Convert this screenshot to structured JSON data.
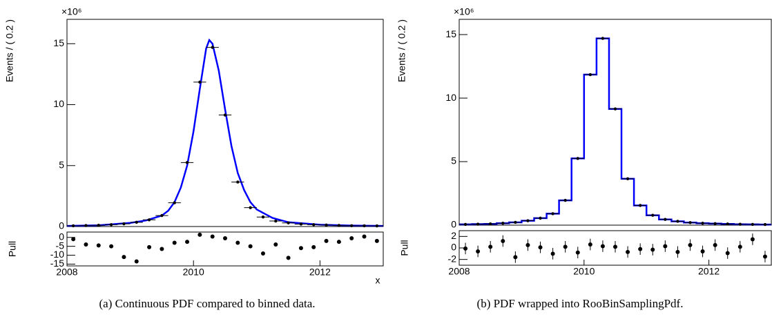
{
  "chart_data": [
    {
      "type": "points_curve",
      "caption": "(a) Continuous PDF compared to binned data.",
      "ylabel": "Events / ( 0.2 )",
      "multiplier_label": "×10⁶",
      "xlabel": "x",
      "x": [
        2008.1,
        2008.3,
        2008.5,
        2008.7,
        2008.9,
        2009.1,
        2009.3,
        2009.5,
        2009.7,
        2009.9,
        2010.1,
        2010.3,
        2010.5,
        2010.7,
        2010.9,
        2011.1,
        2011.3,
        2011.5,
        2011.7,
        2011.9,
        2012.1,
        2012.3,
        2012.5,
        2012.7,
        2012.9
      ],
      "values": [
        0.06,
        0.08,
        0.1,
        0.15,
        0.22,
        0.35,
        0.55,
        0.9,
        1.95,
        5.25,
        11.85,
        14.7,
        9.15,
        3.65,
        1.55,
        0.78,
        0.45,
        0.3,
        0.2,
        0.15,
        0.12,
        0.09,
        0.07,
        0.06,
        0.05
      ],
      "xerr": 0.1,
      "curve": {
        "color": "#0000ff",
        "x": [
          2008,
          2008.5,
          2009,
          2009.25,
          2009.5,
          2009.6,
          2009.7,
          2009.8,
          2009.9,
          2010,
          2010.1,
          2010.2,
          2010.25,
          2010.3,
          2010.4,
          2010.5,
          2010.6,
          2010.7,
          2010.8,
          2010.9,
          2011,
          2011.25,
          2011.5,
          2012,
          2012.5,
          2013
        ],
        "values": [
          0.05,
          0.1,
          0.3,
          0.5,
          0.9,
          1.3,
          2.0,
          3.2,
          5.0,
          7.8,
          11.3,
          14.6,
          15.3,
          15.0,
          12.8,
          9.6,
          6.6,
          4.4,
          3.0,
          2.0,
          1.4,
          0.7,
          0.35,
          0.15,
          0.08,
          0.05
        ]
      },
      "xlim": [
        2008,
        2013
      ],
      "ylim": [
        0,
        17
      ],
      "yticks": [
        0,
        5,
        10,
        15
      ]
    },
    {
      "type": "pull",
      "ylabel": "Pull",
      "x": [
        2008.1,
        2008.3,
        2008.5,
        2008.7,
        2008.9,
        2009.1,
        2009.3,
        2009.5,
        2009.7,
        2009.9,
        2010.1,
        2010.3,
        2010.5,
        2010.7,
        2010.9,
        2011.1,
        2011.3,
        2011.5,
        2011.7,
        2011.9,
        2012.1,
        2012.3,
        2012.5,
        2012.7,
        2012.9
      ],
      "values": [
        -1,
        -4,
        -4.5,
        -5,
        -11,
        -13.5,
        -5.5,
        -6.5,
        -3,
        -2.5,
        1.5,
        0.5,
        -0.5,
        -3,
        -5,
        -9,
        -4,
        -11.5,
        -6,
        -5.5,
        -2,
        -2.5,
        -0.5,
        0.5,
        -2
      ],
      "xlim": [
        2008,
        2013
      ],
      "ylim": [
        -16,
        3
      ],
      "yticks": [
        -15,
        -10,
        -5,
        0
      ],
      "xticks": [
        2008,
        2010,
        2012
      ]
    },
    {
      "type": "step_points",
      "caption": "(b) PDF wrapped into RooBinSamplingPdf.",
      "ylabel": "Events / ( 0.2 )",
      "multiplier_label": "×10⁶",
      "color": "#0000ff",
      "x": [
        2008.1,
        2008.3,
        2008.5,
        2008.7,
        2008.9,
        2009.1,
        2009.3,
        2009.5,
        2009.7,
        2009.9,
        2010.1,
        2010.3,
        2010.5,
        2010.7,
        2010.9,
        2011.1,
        2011.3,
        2011.5,
        2011.7,
        2011.9,
        2012.1,
        2012.3,
        2012.5,
        2012.7,
        2012.9
      ],
      "values": [
        0.06,
        0.08,
        0.1,
        0.15,
        0.22,
        0.35,
        0.55,
        0.9,
        1.95,
        5.25,
        11.85,
        14.7,
        9.15,
        3.65,
        1.55,
        0.78,
        0.45,
        0.3,
        0.2,
        0.15,
        0.12,
        0.09,
        0.07,
        0.06,
        0.05
      ],
      "xerr": 0.1,
      "xlim": [
        2008,
        2013
      ],
      "ylim": [
        0,
        16.2
      ],
      "yticks": [
        0,
        5,
        10,
        15
      ]
    },
    {
      "type": "pull",
      "ylabel": "Pull",
      "x": [
        2008.1,
        2008.3,
        2008.5,
        2008.7,
        2008.9,
        2009.1,
        2009.3,
        2009.5,
        2009.7,
        2009.9,
        2010.1,
        2010.3,
        2010.5,
        2010.7,
        2010.9,
        2011.1,
        2011.3,
        2011.5,
        2011.7,
        2011.9,
        2012.1,
        2012.3,
        2012.5,
        2012.7,
        2012.9
      ],
      "values": [
        -0.1,
        -0.6,
        0.2,
        1.2,
        -1.6,
        0.5,
        0.1,
        -1.0,
        0.2,
        -0.8,
        0.6,
        0.3,
        0.2,
        -0.7,
        -0.2,
        -0.3,
        0.3,
        -0.7,
        0.5,
        -0.6,
        0.5,
        -0.9,
        0.2,
        1.5,
        -1.5
      ],
      "yerr": 1,
      "xlim": [
        2008,
        2013
      ],
      "ylim": [
        -3,
        3
      ],
      "yticks": [
        -2,
        0,
        2
      ],
      "xticks": [
        2008,
        2010,
        2012
      ]
    }
  ]
}
